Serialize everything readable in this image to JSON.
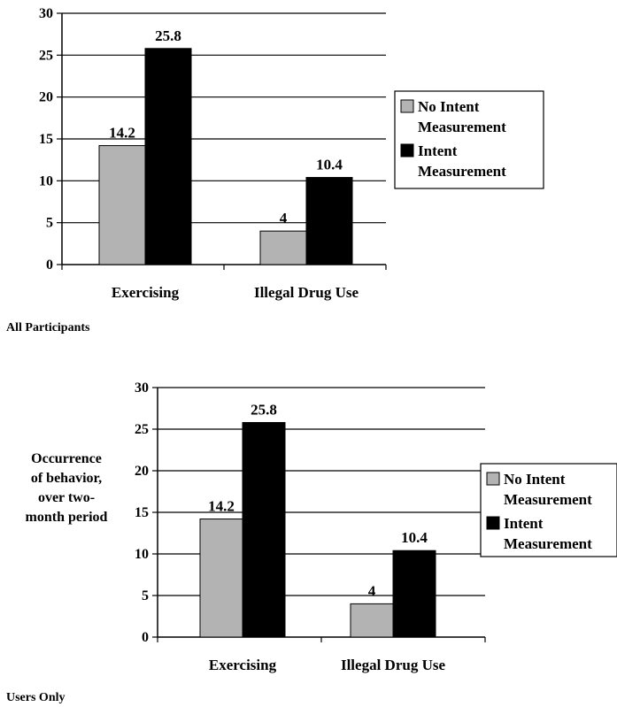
{
  "chart_data": [
    {
      "type": "bar",
      "caption": "All Participants",
      "ylabel": "",
      "categories": [
        "Exercising",
        "Illegal Drug Use"
      ],
      "series": [
        {
          "name": "No Intent Measurement",
          "values": [
            14.2,
            4
          ],
          "value_labels": [
            "14.2",
            "4"
          ],
          "color": "#b3b3b3"
        },
        {
          "name": "Intent Measurement",
          "values": [
            25.8,
            10.4
          ],
          "value_labels": [
            "25.8",
            "10.4"
          ],
          "color": "#000000"
        }
      ],
      "ylim": [
        0,
        30
      ],
      "yticks": [
        "0",
        "5",
        "10",
        "15",
        "20",
        "25",
        "30"
      ],
      "grid": true,
      "legend_position": "right",
      "legend": [
        {
          "line1": "No Intent",
          "line2": "Measurement"
        },
        {
          "line1": "Intent",
          "line2": "Measurement"
        }
      ]
    },
    {
      "type": "bar",
      "caption": "Users Only",
      "ylabel_lines": [
        "Occurrence",
        "of behavior,",
        "over two-",
        "month period"
      ],
      "categories": [
        "Exercising",
        "Illegal Drug Use"
      ],
      "series": [
        {
          "name": "No Intent Measurement",
          "values": [
            14.2,
            4
          ],
          "value_labels": [
            "14.2",
            "4"
          ],
          "color": "#b3b3b3"
        },
        {
          "name": "Intent Measurement",
          "values": [
            25.8,
            10.4
          ],
          "value_labels": [
            "25.8",
            "10.4"
          ],
          "color": "#000000"
        }
      ],
      "ylim": [
        0,
        30
      ],
      "yticks": [
        "0",
        "5",
        "10",
        "15",
        "20",
        "25",
        "30"
      ],
      "grid": true,
      "legend_position": "right",
      "legend": [
        {
          "line1": "No Intent",
          "line2": "Measurement"
        },
        {
          "line1": "Intent",
          "line2": "Measurement"
        }
      ]
    }
  ]
}
